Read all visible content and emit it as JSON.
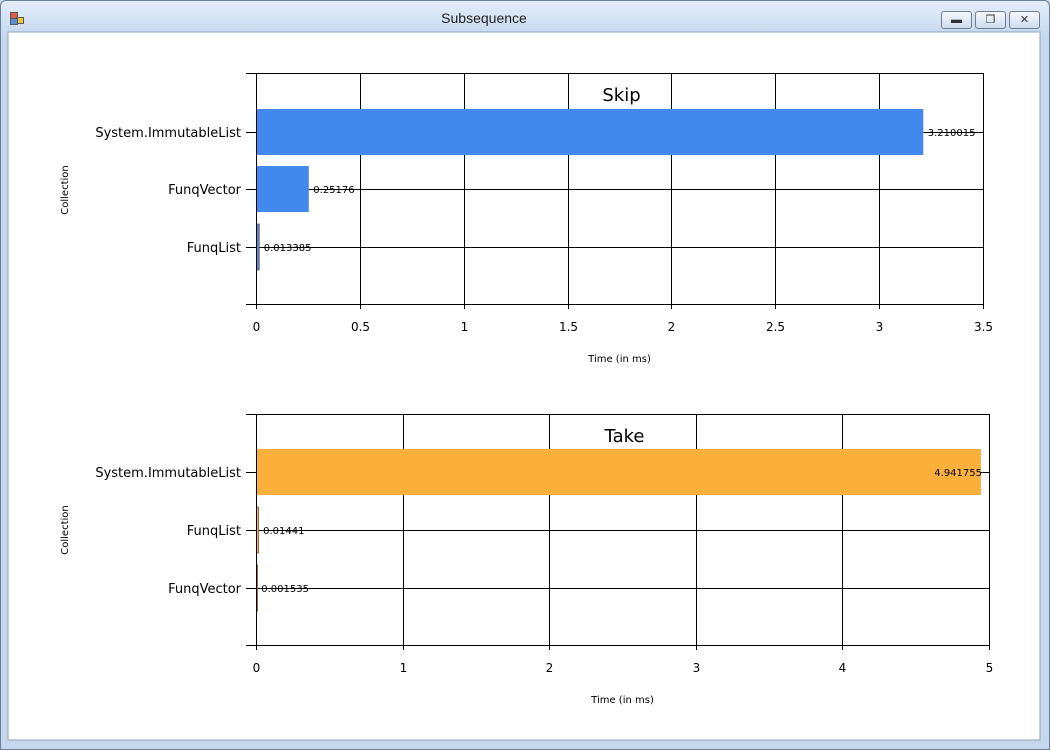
{
  "window": {
    "title": "Subsequence"
  },
  "chart_data": [
    {
      "type": "bar",
      "orientation": "horizontal",
      "title": "Skip",
      "xlabel": "Time (in ms)",
      "ylabel": "Collection",
      "categories": [
        "System.ImmutableList",
        "FunqVector",
        "FunqList"
      ],
      "values": [
        3.210015,
        0.25176,
        0.013385
      ],
      "value_labels": [
        "3.210015",
        "0.25176",
        "0.013385"
      ],
      "xlim": [
        0,
        3.5
      ],
      "xticks": [
        0,
        0.5,
        1,
        1.5,
        2,
        2.5,
        3,
        3.5
      ],
      "xtick_labels": [
        "0",
        "0.5",
        "1",
        "1.5",
        "2",
        "2.5",
        "3",
        "3.5"
      ],
      "grid": true,
      "color": "#4189ed"
    },
    {
      "type": "bar",
      "orientation": "horizontal",
      "title": "Take",
      "xlabel": "Time (in ms)",
      "ylabel": "Collection",
      "categories": [
        "System.ImmutableList",
        "FunqList",
        "FunqVector"
      ],
      "values": [
        4.941755,
        0.01441,
        0.001535
      ],
      "value_labels": [
        "4.941755",
        "0.01441",
        "0.001535"
      ],
      "xlim": [
        0,
        5
      ],
      "xticks": [
        0,
        1,
        2,
        3,
        4,
        5
      ],
      "xtick_labels": [
        "0",
        "1",
        "2",
        "3",
        "4",
        "5"
      ],
      "grid": true,
      "color": "#fbb03b"
    }
  ]
}
